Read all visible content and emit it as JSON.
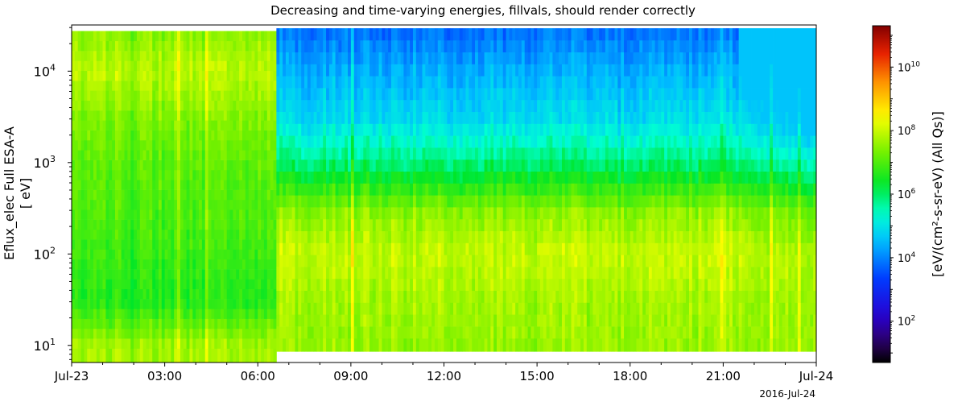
{
  "chart_data": {
    "type": "heatmap",
    "title": "Decreasing and time-varying energies, fillvals, should render correctly",
    "ylabel_line1": "Eflux_elec Full ESA-A",
    "ylabel_line2": "[ eV]",
    "y_scale": "log",
    "ylim_eV": [
      6.5,
      32000
    ],
    "y_ticks": [
      {
        "value": 10,
        "base": "10",
        "exp": "1"
      },
      {
        "value": 100,
        "base": "10",
        "exp": "2"
      },
      {
        "value": 1000,
        "base": "10",
        "exp": "3"
      },
      {
        "value": 10000,
        "base": "10",
        "exp": "4"
      }
    ],
    "x_range_hours": [
      0,
      24
    ],
    "x_ticks": [
      {
        "hour": 0,
        "label": "Jul-23"
      },
      {
        "hour": 3,
        "label": "03:00"
      },
      {
        "hour": 6,
        "label": "06:00"
      },
      {
        "hour": 9,
        "label": "09:00"
      },
      {
        "hour": 12,
        "label": "12:00"
      },
      {
        "hour": 15,
        "label": "15:00"
      },
      {
        "hour": 18,
        "label": "18:00"
      },
      {
        "hour": 21,
        "label": "21:00"
      },
      {
        "hour": 24,
        "label": "Jul-24"
      }
    ],
    "x_date_label": "2016-Jul-24",
    "colorbar": {
      "label": "[eV/(cm²-s-sr-eV) (All Qs)]",
      "scale": "log",
      "range_log10": [
        0.7,
        11.3
      ],
      "colormap": "spedas",
      "ticks": [
        {
          "value": 100,
          "base": "10",
          "exp": "2"
        },
        {
          "value": 10000,
          "base": "10",
          "exp": "4"
        },
        {
          "value": 1000000,
          "base": "10",
          "exp": "6"
        },
        {
          "value": 100000000,
          "base": "10",
          "exp": "8"
        },
        {
          "value": 10000000000,
          "base": "10",
          "exp": "10"
        }
      ]
    },
    "energy_bands_eV_early": [
      8.2,
      10.5,
      13.5,
      17.3,
      22.2,
      28.5,
      36.6,
      47,
      60.3,
      77.4,
      99.4,
      127.6,
      163.8,
      210.3,
      270,
      346.7,
      445.1,
      571.5,
      733.8,
      942.2,
      1209.8,
      1553.4,
      1994.5,
      2561,
      3288.3,
      4222.2,
      5421.3,
      6960.9,
      8937.8,
      11476.1,
      14735.4,
      18920.2,
      24293.6
    ],
    "energy_bands_eV_late": [
      10.3,
      13.9,
      18.8,
      25.4,
      34.3,
      46.3,
      62.5,
      84.4,
      114,
      153.9,
      207.8,
      280.6,
      378.9,
      511.6,
      690.8,
      932.8,
      1259.5,
      1700.6,
      2296.3,
      3100.6,
      4186.6,
      5653,
      7633,
      10306.5,
      13916.5,
      18791,
      25372.8
    ],
    "energy_table_switch_hour": 6.55,
    "profile_log10_flux": [
      {
        "energy_eV": 10,
        "early": 7.7,
        "late": 7.6
      },
      {
        "energy_eV": 30,
        "early": 6.6,
        "late": 7.7
      },
      {
        "energy_eV": 100,
        "early": 6.8,
        "late": 8.0
      },
      {
        "energy_eV": 300,
        "early": 7.0,
        "late": 7.5
      },
      {
        "energy_eV": 1000,
        "early": 7.1,
        "late": 5.9
      },
      {
        "energy_eV": 3000,
        "early": 7.4,
        "late": 4.9
      },
      {
        "energy_eV": 10000,
        "early": 7.9,
        "late": 4.4
      },
      {
        "energy_eV": 25000,
        "early": 7.5,
        "late": 3.9
      }
    ],
    "fill_value_regions": [
      {
        "hour_from": 6.55,
        "hour_to": 24,
        "below_eV": 8.6,
        "note": "no data"
      },
      {
        "hour_from": 0,
        "hour_to": 3.8,
        "above_eV": 27500,
        "note": "no data"
      }
    ]
  }
}
